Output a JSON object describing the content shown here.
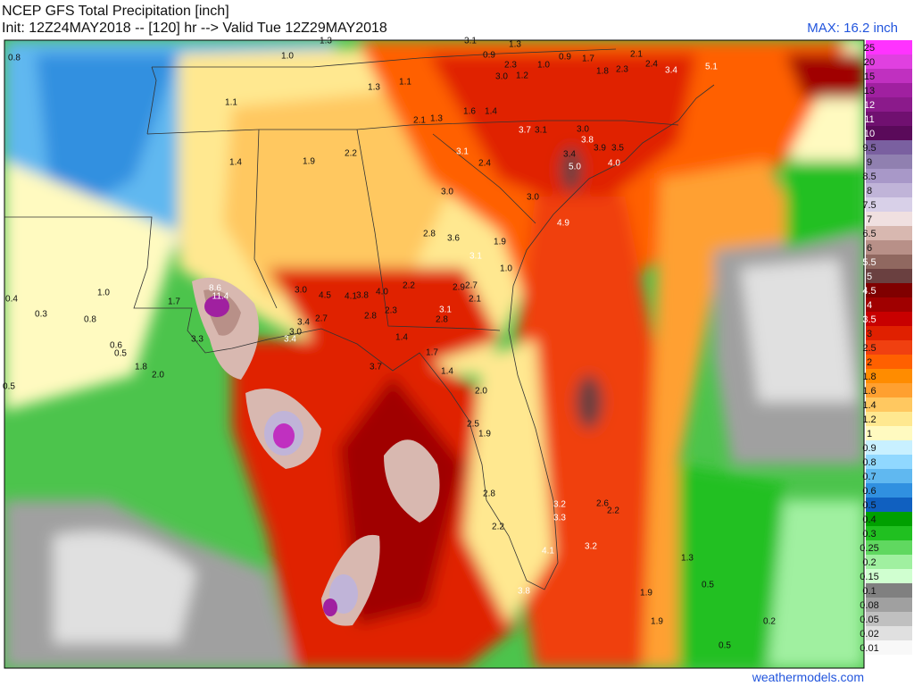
{
  "header": {
    "title": "NCEP GFS Total Precipitation [inch]",
    "subtitle": "Init: 12Z24MAY2018 -- [120] hr --> Valid Tue 12Z29MAY2018",
    "max_label": "MAX: 16.2 inch"
  },
  "footer": "weathermodels.com",
  "colorbar": [
    {
      "label": "25",
      "color": "#ff33ff"
    },
    {
      "label": "20",
      "color": "#e040e0"
    },
    {
      "label": "15",
      "color": "#c030c0"
    },
    {
      "label": "13",
      "color": "#a020a0"
    },
    {
      "label": "12",
      "color": "#8b1a8b"
    },
    {
      "label": "11",
      "color": "#701070"
    },
    {
      "label": "10",
      "color": "#5a0a5a"
    },
    {
      "label": "9.5",
      "color": "#7a60a0"
    },
    {
      "label": "9",
      "color": "#9080b0"
    },
    {
      "label": "8.5",
      "color": "#a898c8"
    },
    {
      "label": "8",
      "color": "#c0b4d8"
    },
    {
      "label": "7.5",
      "color": "#d8d0e8"
    },
    {
      "label": "7",
      "color": "#f0e0e0"
    },
    {
      "label": "6.5",
      "color": "#d8b8b0"
    },
    {
      "label": "6",
      "color": "#b89088"
    },
    {
      "label": "5.5",
      "color": "#906860"
    },
    {
      "label": "5",
      "color": "#6a4040"
    },
    {
      "label": "4.5",
      "color": "#800000"
    },
    {
      "label": "4",
      "color": "#a00000"
    },
    {
      "label": "3.5",
      "color": "#c80000"
    },
    {
      "label": "3",
      "color": "#e02000"
    },
    {
      "label": "2.5",
      "color": "#f04010"
    },
    {
      "label": "2",
      "color": "#ff6000"
    },
    {
      "label": "1.8",
      "color": "#ff8c00"
    },
    {
      "label": "1.6",
      "color": "#ffa030"
    },
    {
      "label": "1.4",
      "color": "#ffc860"
    },
    {
      "label": "1.2",
      "color": "#ffe890"
    },
    {
      "label": "1",
      "color": "#fffac0"
    },
    {
      "label": "0.9",
      "color": "#c8f0ff"
    },
    {
      "label": "0.8",
      "color": "#90d8ff"
    },
    {
      "label": "0.7",
      "color": "#60b8f0"
    },
    {
      "label": "0.6",
      "color": "#3090e0"
    },
    {
      "label": "0.5",
      "color": "#1060c0"
    },
    {
      "label": "0.4",
      "color": "#00a000"
    },
    {
      "label": "0.3",
      "color": "#20c020"
    },
    {
      "label": "0.25",
      "color": "#60d860"
    },
    {
      "label": "0.2",
      "color": "#a0f0a0"
    },
    {
      "label": "0.15",
      "color": "#d0ffd0"
    },
    {
      "label": "0.1",
      "color": "#808080"
    },
    {
      "label": "0.08",
      "color": "#a0a0a0"
    },
    {
      "label": "0.05",
      "color": "#c0c0c0"
    },
    {
      "label": "0.02",
      "color": "#e0e0e0"
    },
    {
      "label": "0.01",
      "color": "#f8f8f8"
    }
  ],
  "map_labels": [
    "1.3",
    "3.1",
    "1.3",
    "0.8",
    "1.0",
    "0.9",
    "0.9",
    "1.7",
    "2.1",
    "2.4",
    "3.4",
    "5.1",
    "1.3",
    "1.1",
    "2.3",
    "1.0",
    "1.2",
    "3.0",
    "1.8",
    "2.3",
    "1.1",
    "2.1",
    "1.3",
    "1.6",
    "1.4",
    "3.7",
    "3.1",
    "3.0",
    "3.8",
    "3.9",
    "3.5",
    "4.0",
    "3.4",
    "5.0",
    "3.1",
    "2.4",
    "1.4",
    "1.9",
    "2.2",
    "3.0",
    "3.0",
    "4.9",
    "3.6",
    "2.8",
    "3.1",
    "1.9",
    "1.0",
    "8.6",
    "11.4",
    "1.7",
    "3.0",
    "4.5",
    "4.1",
    "3.8",
    "4.0",
    "2.2",
    "2.9",
    "2.7",
    "2.1",
    "3.1",
    "2.8",
    "3.4",
    "2.7",
    "2.8",
    "2.3",
    "3.3",
    "3.4",
    "3.0",
    "3.7",
    "1.4",
    "1.7",
    "1.4",
    "2.0",
    "1.8",
    "2.0",
    "2.5",
    "1.9",
    "2.8",
    "2.2",
    "3.2",
    "3.3",
    "3.2",
    "4.1",
    "3.8",
    "2.6",
    "2.2",
    "1.9",
    "1.9",
    "1.3",
    "0.5",
    "0.2",
    "0.5",
    "1.0",
    "0.6",
    "0.5",
    "0.5",
    "0.4",
    "0.3",
    "0.8"
  ]
}
